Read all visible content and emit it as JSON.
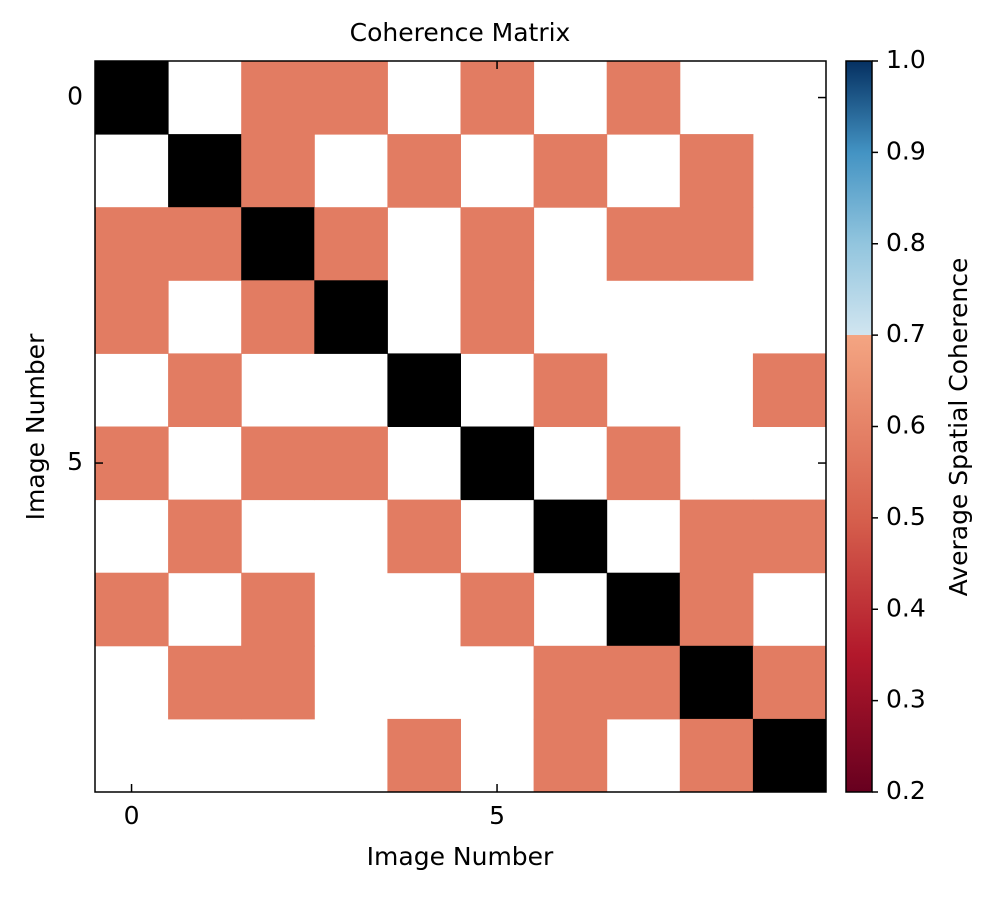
{
  "chart_data": {
    "type": "heatmap",
    "title": "Coherence Matrix",
    "xlabel": "Image Number",
    "ylabel": "Image Number",
    "colorbar_label": "Average Spatial Coherence",
    "xlim": [
      -0.5,
      9.5
    ],
    "ylim": [
      9.5,
      -0.5
    ],
    "xticks": [
      0,
      5
    ],
    "yticks": [
      0,
      5
    ],
    "clim": [
      0.2,
      1.0
    ],
    "cticks": [
      0.2,
      0.3,
      0.4,
      0.5,
      0.6,
      0.7,
      0.8,
      0.9,
      {
        "value": 1.0,
        "label": "1.0"
      }
    ],
    "colormap": [
      [
        0.2,
        "#67001f"
      ],
      [
        0.35,
        "#b2182b"
      ],
      [
        0.5,
        "#d6604d"
      ],
      [
        0.7,
        "#f4a582"
      ],
      [
        0.7,
        "#d1e5f0"
      ],
      [
        0.8,
        "#92c5de"
      ],
      [
        0.9,
        "#4393c3"
      ],
      [
        1.0,
        "#053061"
      ]
    ],
    "diagonal_color": "#000000",
    "z": [
      [
        null,
        null,
        0.58,
        0.58,
        null,
        0.58,
        null,
        0.58,
        null,
        null
      ],
      [
        null,
        null,
        0.58,
        null,
        0.58,
        null,
        0.58,
        null,
        0.58,
        null
      ],
      [
        0.58,
        0.58,
        null,
        0.58,
        null,
        0.58,
        null,
        0.58,
        0.58,
        null
      ],
      [
        0.58,
        null,
        0.58,
        null,
        null,
        0.58,
        null,
        null,
        null,
        null
      ],
      [
        null,
        0.58,
        null,
        null,
        null,
        null,
        0.58,
        null,
        null,
        0.58
      ],
      [
        0.58,
        null,
        0.58,
        0.58,
        null,
        null,
        null,
        0.58,
        null,
        null
      ],
      [
        null,
        0.58,
        null,
        null,
        0.58,
        null,
        null,
        null,
        0.58,
        0.58
      ],
      [
        0.58,
        null,
        0.58,
        null,
        null,
        0.58,
        null,
        null,
        0.58,
        null
      ],
      [
        null,
        0.58,
        0.58,
        null,
        null,
        null,
        0.58,
        0.58,
        null,
        0.58
      ],
      [
        null,
        null,
        null,
        null,
        0.58,
        null,
        0.58,
        null,
        0.58,
        null
      ]
    ]
  }
}
